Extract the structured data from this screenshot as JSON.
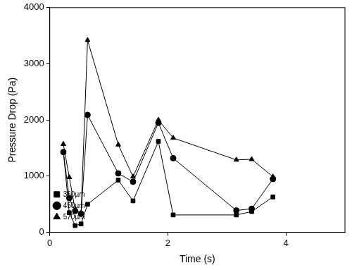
{
  "chart_data": {
    "type": "line",
    "x_label": "Time (s)",
    "y_label": "Pressure Drop (Pa)",
    "x": [
      0.23,
      0.33,
      0.43,
      0.53,
      0.64,
      1.16,
      1.41,
      1.84,
      2.09,
      3.16,
      3.42,
      3.78
    ],
    "series": [
      {
        "name": "360µm",
        "color": "#000000",
        "marker": "square",
        "values": [
          1430,
          350,
          120,
          150,
          500,
          930,
          560,
          1620,
          310,
          310,
          370,
          630
        ]
      },
      {
        "name": "450µm",
        "color": "#000000",
        "marker": "circle",
        "values": [
          1430,
          610,
          380,
          330,
          2090,
          1050,
          900,
          1950,
          1320,
          390,
          420,
          950
        ]
      },
      {
        "name": "570µm",
        "color": "#000000",
        "marker": "triangle",
        "values": [
          1570,
          980,
          400,
          350,
          3420,
          1560,
          990,
          2000,
          1680,
          1290,
          1300,
          990
        ]
      }
    ],
    "xlim": [
      0,
      5
    ],
    "xticks": [
      0,
      2,
      4
    ],
    "ylim": [
      0,
      4000
    ],
    "yticks": [
      0,
      1000,
      2000,
      3000,
      4000
    ],
    "grid": false,
    "legend": "upper right"
  }
}
